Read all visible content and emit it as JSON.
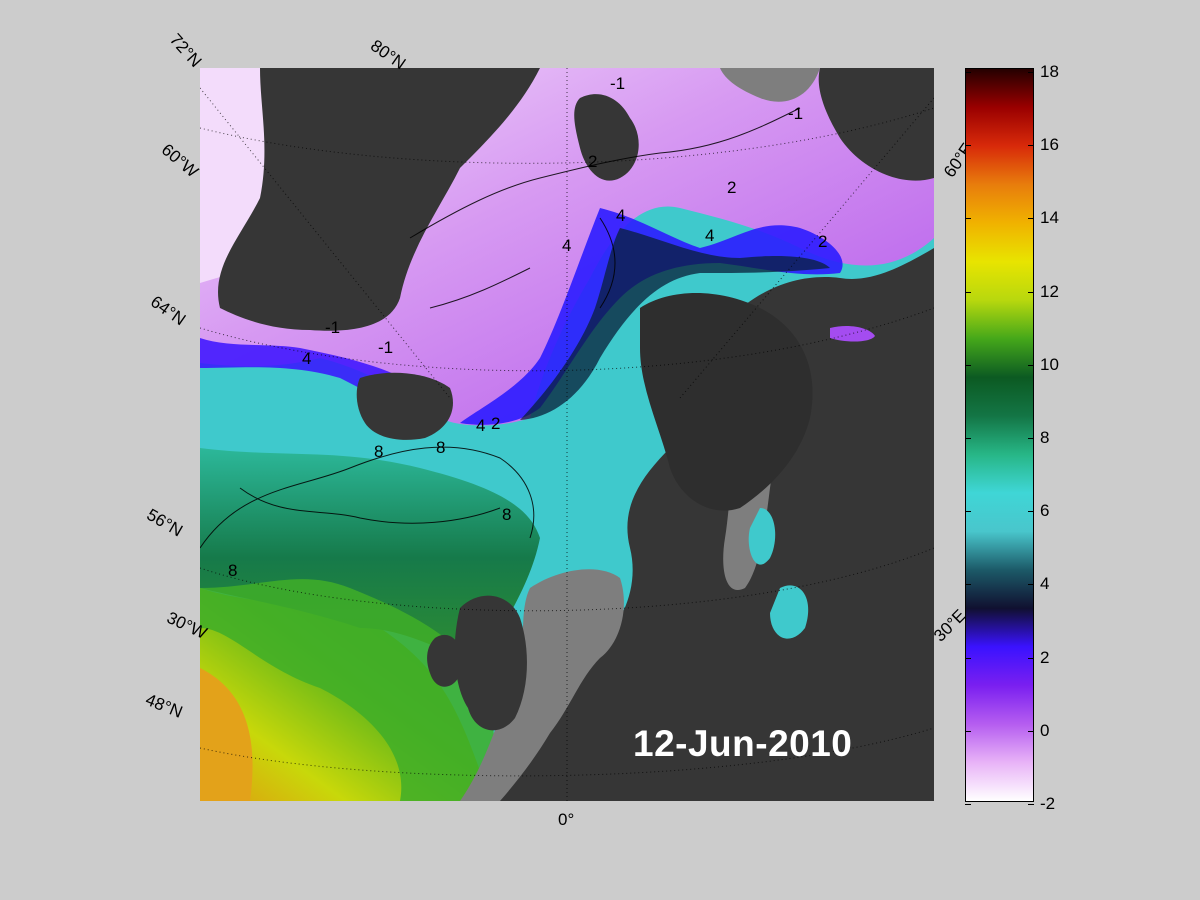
{
  "date": "12-Jun-2010",
  "latitude_labels": [
    "72°N",
    "60°N",
    "64°N",
    "56°N",
    "48°N"
  ],
  "longitude_labels": [
    "80°N",
    "60°W",
    "30°W",
    "0°",
    "60°E",
    "30°E"
  ],
  "colorbar": {
    "ticks": [
      "18",
      "16",
      "14",
      "12",
      "10",
      "8",
      "6",
      "4",
      "2",
      "0",
      "-2"
    ],
    "min": -2,
    "max": 18,
    "colors": [
      "#ffffff",
      "#e8b3f7",
      "#b55df0",
      "#7a1ff0",
      "#3a12ff",
      "#101030",
      "#1c5a68",
      "#49c6cc",
      "#3fd6d6",
      "#27b686",
      "#137545",
      "#0c5a22",
      "#45a81a",
      "#b8d80e",
      "#e8e400",
      "#f0b200",
      "#e87d0c",
      "#d82a0a",
      "#9a0000",
      "#250000"
    ]
  },
  "contours": {
    "labels": [
      "-1",
      "-1",
      "2",
      "2",
      "2",
      "4",
      "4",
      "4",
      "-1",
      "-1",
      "4",
      "8",
      "8",
      "8",
      "8",
      "2",
      "4",
      "-1"
    ]
  },
  "colors": {
    "background": "#cccccc",
    "land": "#363636",
    "ice_land": "#7e7e7e",
    "date_text": "#ffffff"
  }
}
